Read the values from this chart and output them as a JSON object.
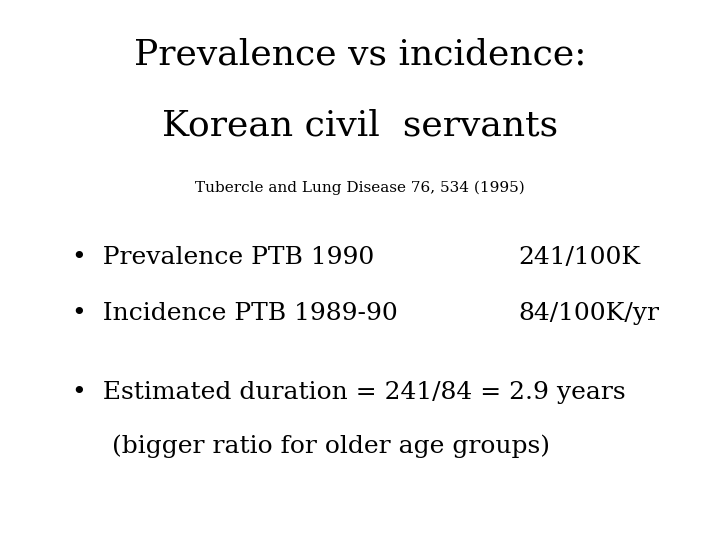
{
  "title_line1": "Prevalence vs incidence:",
  "title_line2": "Korean civil  servants",
  "subtitle": "Tubercle and Lung Disease 76, 534 (1995)",
  "bullet1_left": "Prevalence PTB 1990",
  "bullet1_right": "241/100K",
  "bullet2_left": "Incidence PTB 1989-90",
  "bullet2_right": "84/100K/yr",
  "bullet3_line1": "Estimated duration = 241/84 = 2.9 years",
  "bullet3_line2": "(bigger ratio for older age groups)",
  "bg_color": "#ffffff",
  "text_color": "#000000",
  "title_fontsize": 26,
  "subtitle_fontsize": 11,
  "bullet_fontsize": 18,
  "bullet_symbol": "•"
}
